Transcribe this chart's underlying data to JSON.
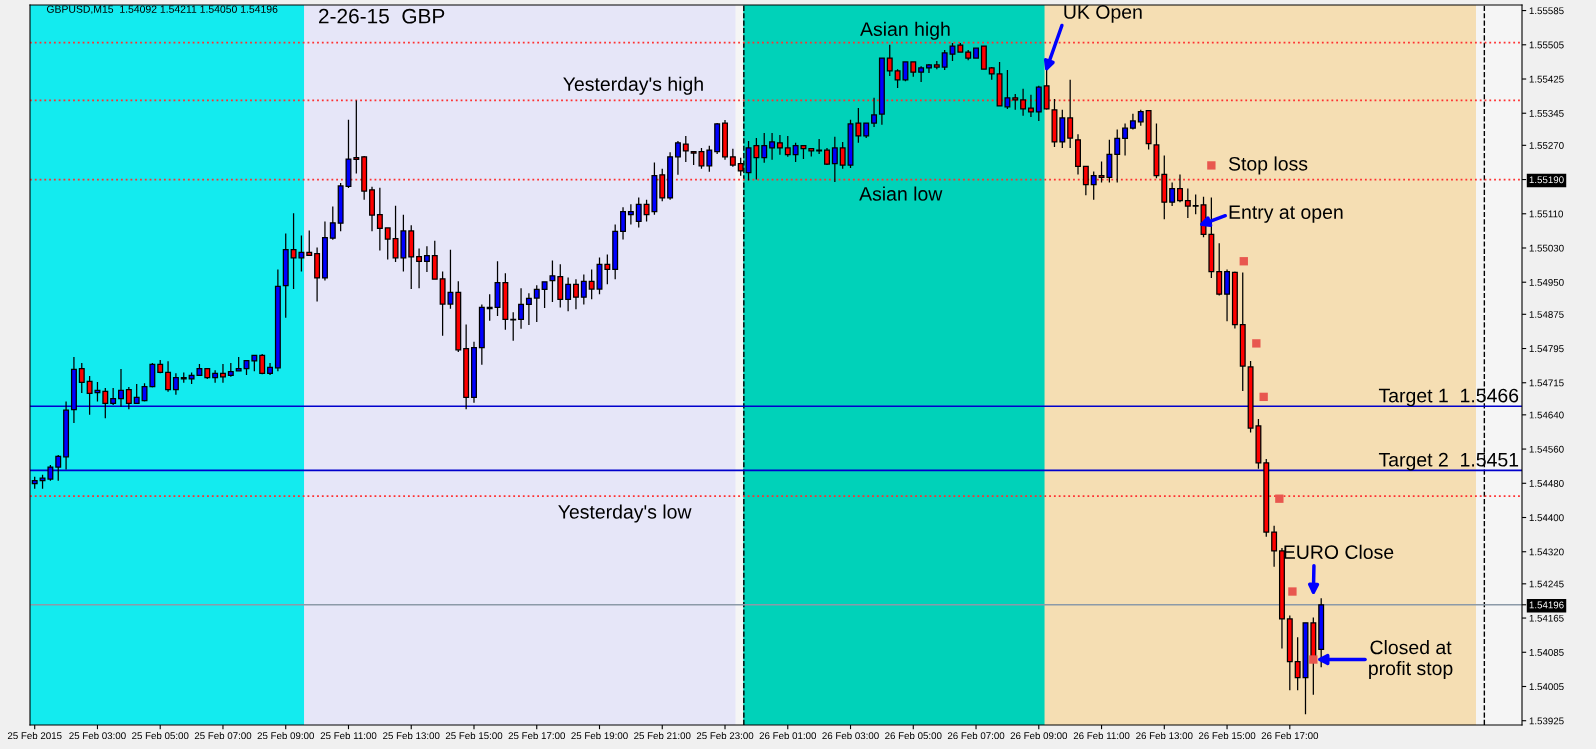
{
  "chart_data": {
    "type": "candlestick",
    "title": "2-26-15  GBP",
    "subtitle": "GBPUSD,M15  1.54092 1.54211 1.54050 1.54196",
    "x": [
      "2015-02-25T01:00",
      "2015-02-25T01:15",
      "2015-02-25T01:30",
      "2015-02-25T01:45",
      "2015-02-25T02:00",
      "2015-02-25T02:15",
      "2015-02-25T02:30",
      "2015-02-25T02:45",
      "2015-02-25T03:00",
      "2015-02-25T03:15",
      "2015-02-25T03:30",
      "2015-02-25T03:45",
      "2015-02-25T04:00",
      "2015-02-25T04:15",
      "2015-02-25T04:30",
      "2015-02-25T04:45",
      "2015-02-25T05:00",
      "2015-02-25T05:15",
      "2015-02-25T05:30",
      "2015-02-25T05:45",
      "2015-02-25T06:00",
      "2015-02-25T06:15",
      "2015-02-25T06:30",
      "2015-02-25T06:45",
      "2015-02-25T07:00",
      "2015-02-25T07:15",
      "2015-02-25T07:30",
      "2015-02-25T07:45",
      "2015-02-25T08:00",
      "2015-02-25T08:15",
      "2015-02-25T08:30",
      "2015-02-25T08:45",
      "2015-02-25T09:00",
      "2015-02-25T09:15",
      "2015-02-25T09:30",
      "2015-02-25T09:45",
      "2015-02-25T10:00",
      "2015-02-25T10:15",
      "2015-02-25T10:30",
      "2015-02-25T10:45",
      "2015-02-25T11:00",
      "2015-02-25T11:15",
      "2015-02-25T11:30",
      "2015-02-25T11:45",
      "2015-02-25T12:00",
      "2015-02-25T12:15",
      "2015-02-25T12:30",
      "2015-02-25T12:45",
      "2015-02-25T13:00",
      "2015-02-25T13:15",
      "2015-02-25T13:30",
      "2015-02-25T13:45",
      "2015-02-25T14:00",
      "2015-02-25T14:15",
      "2015-02-25T14:30",
      "2015-02-25T14:45",
      "2015-02-25T15:00",
      "2015-02-25T15:15",
      "2015-02-25T15:30",
      "2015-02-25T15:45",
      "2015-02-25T16:00",
      "2015-02-25T16:15",
      "2015-02-25T16:30",
      "2015-02-25T16:45",
      "2015-02-25T17:00",
      "2015-02-25T17:15",
      "2015-02-25T17:30",
      "2015-02-25T17:45",
      "2015-02-25T18:00",
      "2015-02-25T18:15",
      "2015-02-25T18:30",
      "2015-02-25T18:45",
      "2015-02-25T19:00",
      "2015-02-25T19:15",
      "2015-02-25T19:30",
      "2015-02-25T19:45",
      "2015-02-25T20:00",
      "2015-02-25T20:15",
      "2015-02-25T20:30",
      "2015-02-25T20:45",
      "2015-02-25T21:00",
      "2015-02-25T21:15",
      "2015-02-25T21:30",
      "2015-02-25T21:45",
      "2015-02-25T22:00",
      "2015-02-25T22:15",
      "2015-02-25T22:30",
      "2015-02-25T22:45",
      "2015-02-25T23:00",
      "2015-02-25T23:15",
      "2015-02-25T23:30",
      "2015-02-25T23:45",
      "2015-02-26T00:00",
      "2015-02-26T00:15",
      "2015-02-26T00:30",
      "2015-02-26T00:45",
      "2015-02-26T01:00",
      "2015-02-26T01:15",
      "2015-02-26T01:30",
      "2015-02-26T01:45",
      "2015-02-26T02:00",
      "2015-02-26T02:15",
      "2015-02-26T02:30",
      "2015-02-26T02:45",
      "2015-02-26T03:00",
      "2015-02-26T03:15",
      "2015-02-26T03:30",
      "2015-02-26T03:45",
      "2015-02-26T04:00",
      "2015-02-26T04:15",
      "2015-02-26T04:30",
      "2015-02-26T04:45",
      "2015-02-26T05:00",
      "2015-02-26T05:15",
      "2015-02-26T05:30",
      "2015-02-26T05:45",
      "2015-02-26T06:00",
      "2015-02-26T06:15",
      "2015-02-26T06:30",
      "2015-02-26T06:45",
      "2015-02-26T07:00",
      "2015-02-26T07:15",
      "2015-02-26T07:30",
      "2015-02-26T07:45",
      "2015-02-26T08:00",
      "2015-02-26T08:15",
      "2015-02-26T08:30",
      "2015-02-26T08:45",
      "2015-02-26T09:00",
      "2015-02-26T09:15",
      "2015-02-26T09:30",
      "2015-02-26T09:45",
      "2015-02-26T10:00",
      "2015-02-26T10:15",
      "2015-02-26T10:30",
      "2015-02-26T10:45",
      "2015-02-26T11:00",
      "2015-02-26T11:15",
      "2015-02-26T11:30",
      "2015-02-26T11:45",
      "2015-02-26T12:00",
      "2015-02-26T12:15",
      "2015-02-26T12:30",
      "2015-02-26T12:45",
      "2015-02-26T13:00",
      "2015-02-26T13:15",
      "2015-02-26T13:30",
      "2015-02-26T13:45",
      "2015-02-26T14:00",
      "2015-02-26T14:15",
      "2015-02-26T14:30",
      "2015-02-26T14:45",
      "2015-02-26T15:00",
      "2015-02-26T15:15",
      "2015-02-26T15:30",
      "2015-02-26T15:45",
      "2015-02-26T16:00",
      "2015-02-26T16:15",
      "2015-02-26T16:30",
      "2015-02-26T16:45",
      "2015-02-26T17:00",
      "2015-02-26T17:15",
      "2015-02-26T17:30",
      "2015-02-26T17:45",
      "2015-02-26T18:00"
    ],
    "ohlc": [
      [
        1.54479,
        1.54495,
        1.54467,
        1.54486
      ],
      [
        1.54486,
        1.545,
        1.54467,
        1.54492
      ],
      [
        1.5449,
        1.54523,
        1.54486,
        1.54518
      ],
      [
        1.54518,
        1.54546,
        1.54486,
        1.54543
      ],
      [
        1.54542,
        1.54671,
        1.54512,
        1.54651
      ],
      [
        1.54652,
        1.54775,
        1.54621,
        1.54746
      ],
      [
        1.54748,
        1.54761,
        1.54691,
        1.54716
      ],
      [
        1.54718,
        1.54731,
        1.5464,
        1.5469
      ],
      [
        1.54692,
        1.54717,
        1.54671,
        1.54697
      ],
      [
        1.54695,
        1.54703,
        1.54632,
        1.54667
      ],
      [
        1.54667,
        1.54703,
        1.54663,
        1.54678
      ],
      [
        1.54678,
        1.54747,
        1.54659,
        1.54697
      ],
      [
        1.54699,
        1.54705,
        1.54653,
        1.54667
      ],
      [
        1.54667,
        1.54712,
        1.54666,
        1.54681
      ],
      [
        1.54673,
        1.54714,
        1.54671,
        1.54706
      ],
      [
        1.54706,
        1.54761,
        1.54704,
        1.54758
      ],
      [
        1.54758,
        1.54768,
        1.54737,
        1.54739
      ],
      [
        1.54739,
        1.54765,
        1.54694,
        1.54699
      ],
      [
        1.54699,
        1.54737,
        1.54687,
        1.54727
      ],
      [
        1.54724,
        1.54739,
        1.54715,
        1.54727
      ],
      [
        1.54724,
        1.54739,
        1.54712,
        1.54732
      ],
      [
        1.54732,
        1.54759,
        1.54731,
        1.54748
      ],
      [
        1.54748,
        1.54748,
        1.54724,
        1.54727
      ],
      [
        1.54727,
        1.54744,
        1.54715,
        1.54737
      ],
      [
        1.54737,
        1.54759,
        1.54715,
        1.54729
      ],
      [
        1.54732,
        1.54761,
        1.54729,
        1.54741
      ],
      [
        1.54743,
        1.54775,
        1.54743,
        1.54748
      ],
      [
        1.54748,
        1.54767,
        1.54733,
        1.54767
      ],
      [
        1.54766,
        1.54779,
        1.54742,
        1.54779
      ],
      [
        1.54779,
        1.54782,
        1.54735,
        1.54737
      ],
      [
        1.54737,
        1.54761,
        1.54733,
        1.54751
      ],
      [
        1.5475,
        1.5498,
        1.54742,
        1.5494
      ],
      [
        1.54942,
        1.55064,
        1.54867,
        1.55026
      ],
      [
        1.55026,
        1.55111,
        1.54934,
        1.55007
      ],
      [
        1.55007,
        1.55059,
        1.54975,
        1.5502
      ],
      [
        1.5502,
        1.55071,
        1.55011,
        1.55013
      ],
      [
        1.55017,
        1.55031,
        1.54905,
        1.5496
      ],
      [
        1.5496,
        1.55092,
        1.54954,
        1.55054
      ],
      [
        1.55053,
        1.55127,
        1.55049,
        1.55089
      ],
      [
        1.55088,
        1.55182,
        1.55069,
        1.55175
      ],
      [
        1.55174,
        1.5533,
        1.5517,
        1.55238
      ],
      [
        1.55241,
        1.55375,
        1.55204,
        1.55237
      ],
      [
        1.55243,
        1.55245,
        1.55143,
        1.55163
      ],
      [
        1.55166,
        1.55173,
        1.55069,
        1.55107
      ],
      [
        1.55108,
        1.55171,
        1.55024,
        1.55076
      ],
      [
        1.55077,
        1.55077,
        1.55003,
        1.55051
      ],
      [
        1.55052,
        1.55129,
        1.54997,
        1.55007
      ],
      [
        1.55007,
        1.55108,
        1.54975,
        1.5507
      ],
      [
        1.5507,
        1.55083,
        1.54934,
        1.55009
      ],
      [
        1.5501,
        1.55029,
        1.54936,
        1.54999
      ],
      [
        1.54999,
        1.55034,
        1.54974,
        1.55012
      ],
      [
        1.55012,
        1.55047,
        1.54957,
        1.54957
      ],
      [
        1.54958,
        1.54975,
        1.54825,
        1.54899
      ],
      [
        1.54899,
        1.55026,
        1.54888,
        1.54926
      ],
      [
        1.54926,
        1.54952,
        1.54787,
        1.54792
      ],
      [
        1.54795,
        1.54851,
        1.54653,
        1.54681
      ],
      [
        1.54681,
        1.54811,
        1.54668,
        1.54797
      ],
      [
        1.54797,
        1.54898,
        1.54757,
        1.54891
      ],
      [
        1.54888,
        1.54922,
        1.5486,
        1.54891
      ],
      [
        1.54891,
        1.54999,
        1.54871,
        1.54949
      ],
      [
        1.54949,
        1.54971,
        1.54839,
        1.54863
      ],
      [
        1.54862,
        1.5488,
        1.54813,
        1.54863
      ],
      [
        1.54863,
        1.54936,
        1.54841,
        1.54898
      ],
      [
        1.54898,
        1.54924,
        1.5485,
        1.54912
      ],
      [
        1.54913,
        1.54943,
        1.54857,
        1.54933
      ],
      [
        1.54933,
        1.54951,
        1.5489,
        1.54951
      ],
      [
        1.54954,
        1.55001,
        1.54904,
        1.54965
      ],
      [
        1.54963,
        1.54992,
        1.54891,
        1.5491
      ],
      [
        1.5491,
        1.54961,
        1.54882,
        1.54945
      ],
      [
        1.54945,
        1.54957,
        1.54887,
        1.54915
      ],
      [
        1.54915,
        1.54968,
        1.54898,
        1.54952
      ],
      [
        1.54952,
        1.5498,
        1.5491,
        1.54934
      ],
      [
        1.54934,
        1.55008,
        1.54922,
        1.54992
      ],
      [
        1.54992,
        1.55015,
        1.54945,
        1.5498
      ],
      [
        1.5498,
        1.55085,
        1.54957,
        1.55069
      ],
      [
        1.55069,
        1.55125,
        1.5505,
        1.55115
      ],
      [
        1.55108,
        1.55132,
        1.55085,
        1.55115
      ],
      [
        1.55092,
        1.55148,
        1.55078,
        1.55132
      ],
      [
        1.55132,
        1.55143,
        1.55092,
        1.55108
      ],
      [
        1.55115,
        1.5523,
        1.55108,
        1.55199
      ],
      [
        1.55201,
        1.55215,
        1.55139,
        1.55147
      ],
      [
        1.55147,
        1.55254,
        1.55143,
        1.55243
      ],
      [
        1.55243,
        1.5528,
        1.55201,
        1.55276
      ],
      [
        1.55273,
        1.55292,
        1.55231,
        1.55257
      ],
      [
        1.55255,
        1.55257,
        1.55224,
        1.55252
      ],
      [
        1.55255,
        1.55264,
        1.55215,
        1.55222
      ],
      [
        1.55222,
        1.55269,
        1.55208,
        1.55259
      ],
      [
        1.55255,
        1.55322,
        1.5525,
        1.5532
      ],
      [
        1.55322,
        1.55329,
        1.55236,
        1.55243
      ],
      [
        1.55243,
        1.55262,
        1.5522,
        1.55224
      ],
      [
        1.55227,
        1.55241,
        1.55199,
        1.5521
      ],
      [
        1.55206,
        1.5528,
        1.55188,
        1.55264
      ],
      [
        1.55269,
        1.55287,
        1.5519,
        1.55241
      ],
      [
        1.55241,
        1.55299,
        1.55229,
        1.55269
      ],
      [
        1.55264,
        1.55299,
        1.55236,
        1.55278
      ],
      [
        1.55276,
        1.55294,
        1.55248,
        1.55264
      ],
      [
        1.55264,
        1.55292,
        1.55243,
        1.55248
      ],
      [
        1.55248,
        1.55276,
        1.55231,
        1.55269
      ],
      [
        1.55269,
        1.55271,
        1.55238,
        1.55262
      ],
      [
        1.55262,
        1.55262,
        1.55244,
        1.55257
      ],
      [
        1.55257,
        1.55285,
        1.5525,
        1.55259
      ],
      [
        1.55259,
        1.55264,
        1.55224,
        1.55226
      ],
      [
        1.55227,
        1.5529,
        1.55184,
        1.55264
      ],
      [
        1.55264,
        1.55278,
        1.55215,
        1.55224
      ],
      [
        1.55224,
        1.5533,
        1.55217,
        1.5532
      ],
      [
        1.55322,
        1.55357,
        1.55276,
        1.55292
      ],
      [
        1.55292,
        1.55322,
        1.55287,
        1.55322
      ],
      [
        1.55322,
        1.55381,
        1.55313,
        1.55341
      ],
      [
        1.55343,
        1.55474,
        1.55318,
        1.55474
      ],
      [
        1.55474,
        1.55505,
        1.55432,
        1.55444
      ],
      [
        1.55444,
        1.55448,
        1.55404,
        1.55423
      ],
      [
        1.55423,
        1.55465,
        1.5542,
        1.55465
      ],
      [
        1.55465,
        1.55465,
        1.5543,
        1.55441
      ],
      [
        1.55441,
        1.55455,
        1.55418,
        1.55451
      ],
      [
        1.55451,
        1.5546,
        1.55439,
        1.55458
      ],
      [
        1.55458,
        1.55467,
        1.55448,
        1.55453
      ],
      [
        1.55453,
        1.55493,
        1.55446,
        1.55486
      ],
      [
        1.55483,
        1.55509,
        1.55467,
        1.55502
      ],
      [
        1.55504,
        1.55509,
        1.55488,
        1.55488
      ],
      [
        1.55488,
        1.55493,
        1.55469,
        1.55474
      ],
      [
        1.55474,
        1.55497,
        1.55474,
        1.55497
      ],
      [
        1.55502,
        1.55502,
        1.55448,
        1.55448
      ],
      [
        1.55451,
        1.55453,
        1.55423,
        1.55437
      ],
      [
        1.55437,
        1.55465,
        1.55362,
        1.55362
      ],
      [
        1.5536,
        1.55446,
        1.55355,
        1.55381
      ],
      [
        1.55381,
        1.5539,
        1.55353,
        1.55376
      ],
      [
        1.55376,
        1.55402,
        1.55339,
        1.55355
      ],
      [
        1.55357,
        1.55388,
        1.55336,
        1.55348
      ],
      [
        1.55348,
        1.55409,
        1.55327,
        1.55406
      ],
      [
        1.55409,
        1.55448,
        1.55353,
        1.55355
      ],
      [
        1.55353,
        1.55378,
        1.55266,
        1.55278
      ],
      [
        1.55278,
        1.55353,
        1.55264,
        1.55334
      ],
      [
        1.55334,
        1.55423,
        1.55264,
        1.55287
      ],
      [
        1.55283,
        1.55296,
        1.55202,
        1.55221
      ],
      [
        1.55221,
        1.55221,
        1.55153,
        1.55178
      ],
      [
        1.55178,
        1.55209,
        1.55143,
        1.55199
      ],
      [
        1.55199,
        1.55232,
        1.55183,
        1.55195
      ],
      [
        1.55195,
        1.55283,
        1.55183,
        1.55249
      ],
      [
        1.55249,
        1.55307,
        1.55183,
        1.55286
      ],
      [
        1.55286,
        1.55321,
        1.55246,
        1.5531
      ],
      [
        1.5531,
        1.55344,
        1.55307,
        1.55327
      ],
      [
        1.55325,
        1.55353,
        1.55316,
        1.55349
      ],
      [
        1.55351,
        1.55351,
        1.5526,
        1.55274
      ],
      [
        1.55271,
        1.55321,
        1.55193,
        1.55199
      ],
      [
        1.55202,
        1.55246,
        1.55097,
        1.55137
      ],
      [
        1.55137,
        1.55183,
        1.55128,
        1.55169
      ],
      [
        1.55169,
        1.55202,
        1.55137,
        1.55141
      ],
      [
        1.55141,
        1.55169,
        1.551,
        1.55128
      ],
      [
        1.55129,
        1.55155,
        1.55109,
        1.55128
      ],
      [
        1.55131,
        1.5515,
        1.55055,
        1.55062
      ],
      [
        1.55062,
        1.55148,
        1.5496,
        1.54975
      ],
      [
        1.54975,
        1.55041,
        1.54919,
        1.54922
      ],
      [
        1.54922,
        1.5498,
        1.54859,
        1.54975
      ],
      [
        1.54973,
        1.54975,
        1.54842,
        1.54851
      ],
      [
        1.54851,
        1.54973,
        1.54696,
        1.54754
      ],
      [
        1.54752,
        1.54766,
        1.54599,
        1.54609
      ],
      [
        1.54614,
        1.5463,
        1.54514,
        1.54528
      ],
      [
        1.54528,
        1.54537,
        1.54355,
        1.54366
      ],
      [
        1.54366,
        1.54381,
        1.54285,
        1.54322
      ],
      [
        1.54322,
        1.54329,
        1.54094,
        1.54163
      ],
      [
        1.54163,
        1.54171,
        1.53996,
        1.54063
      ],
      [
        1.54063,
        1.5412,
        1.53996,
        1.54026
      ],
      [
        1.54026,
        1.54154,
        1.5394,
        1.54154
      ],
      [
        1.54154,
        1.54166,
        1.53986,
        1.5407
      ],
      [
        1.54092,
        1.54211,
        1.5405,
        1.54196
      ]
    ],
    "series": [
      {
        "type": "scatter",
        "color": "#e8574f",
        "marker": "square",
        "x": [
          "2015-02-26T14:30",
          "2015-02-26T15:32",
          "2015-02-26T15:56",
          "2015-02-26T16:10",
          "2015-02-26T16:40",
          "2015-02-26T17:05",
          "2015-02-26T17:45"
        ],
        "values": [
          1.55223,
          1.54999,
          1.54807,
          1.54682,
          1.54444,
          1.54227,
          1.54068
        ]
      }
    ],
    "xlim": [
      "2015-02-25T00:51",
      "2015-02-27T00:24"
    ],
    "ylim": [
      1.53915,
      1.55598
    ],
    "xticks": [
      {
        "value": "2015-02-25T01:00",
        "label": "25 Feb 2015"
      },
      {
        "value": "2015-02-25T03:00",
        "label": "25 Feb 03:00"
      },
      {
        "value": "2015-02-25T05:00",
        "label": "25 Feb 05:00"
      },
      {
        "value": "2015-02-25T07:00",
        "label": "25 Feb 07:00"
      },
      {
        "value": "2015-02-25T09:00",
        "label": "25 Feb 09:00"
      },
      {
        "value": "2015-02-25T11:00",
        "label": "25 Feb 11:00"
      },
      {
        "value": "2015-02-25T13:00",
        "label": "25 Feb 13:00"
      },
      {
        "value": "2015-02-25T15:00",
        "label": "25 Feb 15:00"
      },
      {
        "value": "2015-02-25T17:00",
        "label": "25 Feb 17:00"
      },
      {
        "value": "2015-02-25T19:00",
        "label": "25 Feb 19:00"
      },
      {
        "value": "2015-02-25T21:00",
        "label": "25 Feb 21:00"
      },
      {
        "value": "2015-02-25T23:00",
        "label": "25 Feb 23:00"
      },
      {
        "value": "2015-02-26T01:00",
        "label": "26 Feb 01:00"
      },
      {
        "value": "2015-02-26T03:00",
        "label": "26 Feb 03:00"
      },
      {
        "value": "2015-02-26T05:00",
        "label": "26 Feb 05:00"
      },
      {
        "value": "2015-02-26T07:00",
        "label": "26 Feb 07:00"
      },
      {
        "value": "2015-02-26T09:00",
        "label": "26 Feb 09:00"
      },
      {
        "value": "2015-02-26T11:00",
        "label": "26 Feb 11:00"
      },
      {
        "value": "2015-02-26T13:00",
        "label": "26 Feb 13:00"
      },
      {
        "value": "2015-02-26T15:00",
        "label": "26 Feb 15:00"
      },
      {
        "value": "2015-02-26T17:00",
        "label": "26 Feb 17:00"
      }
    ],
    "yticks": [
      1.55585,
      1.55505,
      1.55425,
      1.55345,
      {
        "value": 1.5527,
        "label": "1.55270"
      },
      {
        "value": 1.5519,
        "label": "1.55190"
      },
      {
        "value": 1.5511,
        "label": "1.55110"
      },
      {
        "value": 1.5503,
        "label": "1.55030"
      },
      {
        "value": 1.5495,
        "label": "1.54950"
      },
      1.54875,
      1.54795,
      1.54715,
      {
        "value": 1.5464,
        "label": "1.54640"
      },
      {
        "value": 1.5456,
        "label": "1.54560"
      },
      {
        "value": 1.5448,
        "label": "1.54480"
      },
      {
        "value": 1.544,
        "label": "1.54400"
      },
      {
        "value": 1.5432,
        "label": "1.54320"
      },
      1.54245,
      1.54196,
      1.54165,
      1.54085,
      1.54005,
      1.53925
    ],
    "bands": [
      {
        "axis": "x",
        "from": "2015-02-25T00:51",
        "to": "2015-02-25T23:20",
        "color": "#e6e6f8"
      },
      {
        "axis": "x",
        "from": "2015-02-25T00:51",
        "to": "2015-02-25T09:35",
        "color": "#13ebef"
      },
      {
        "axis": "x",
        "from": "2015-02-25T23:35",
        "to": "2015-02-26T22:56",
        "color": "#f5deb3"
      },
      {
        "axis": "x",
        "from": "2015-02-25T23:35",
        "to": "2015-02-26T09:11",
        "color": "#00d2b9"
      }
    ],
    "ref_lines": [
      {
        "axis": "x",
        "value": "2015-02-25T23:36",
        "color": "#000000",
        "line_style": "dashed"
      },
      {
        "axis": "x",
        "value": "2015-02-26T23:12",
        "color": "#000000",
        "line_style": "dashed"
      },
      {
        "axis": "y",
        "value": 1.5551,
        "color": "#ff3030",
        "line_style": "dotted"
      },
      {
        "axis": "y",
        "value": 1.55375,
        "color": "#ff3030",
        "line_style": "dotted"
      },
      {
        "axis": "y",
        "value": 1.5519,
        "color": "#ff3030",
        "line_style": "dotted"
      },
      {
        "axis": "y",
        "value": 1.5445,
        "color": "#ff3030",
        "line_style": "dotted"
      },
      {
        "axis": "y",
        "value": 1.5466,
        "color": "#0000cc",
        "line_style": "solid",
        "label": "Target 1  1.5466"
      },
      {
        "axis": "y",
        "value": 1.5451,
        "color": "#0000cc",
        "line_style": "solid",
        "label": "Target 2  1.5451"
      },
      {
        "axis": "y",
        "value": 1.54196,
        "color": "#8c9aa8",
        "line_style": "solid"
      }
    ],
    "annotations": [
      {
        "text": "Yesterday's high",
        "x": "2015-02-25T22:20",
        "y": 1.55375
      },
      {
        "text": "Yesterday's low",
        "x": "2015-02-25T19:48",
        "y": 1.5445
      },
      {
        "text": "Asian high",
        "x": "2015-02-26T04:45",
        "y": 1.5551
      },
      {
        "text": "Asian low",
        "x": "2015-02-26T04:36",
        "y": 1.5519
      },
      {
        "text": "UK Open",
        "x": "2015-02-26T09:11",
        "y": 1.55435
      },
      {
        "text": "Stop loss",
        "x": "2015-02-26T14:30",
        "y": 1.55223
      },
      "Entry at open",
      "EURO Close",
      {
        "text": "Closed at\nprofit stop",
        "x": "2015-02-26T17:45",
        "y": 1.54068
      }
    ]
  }
}
